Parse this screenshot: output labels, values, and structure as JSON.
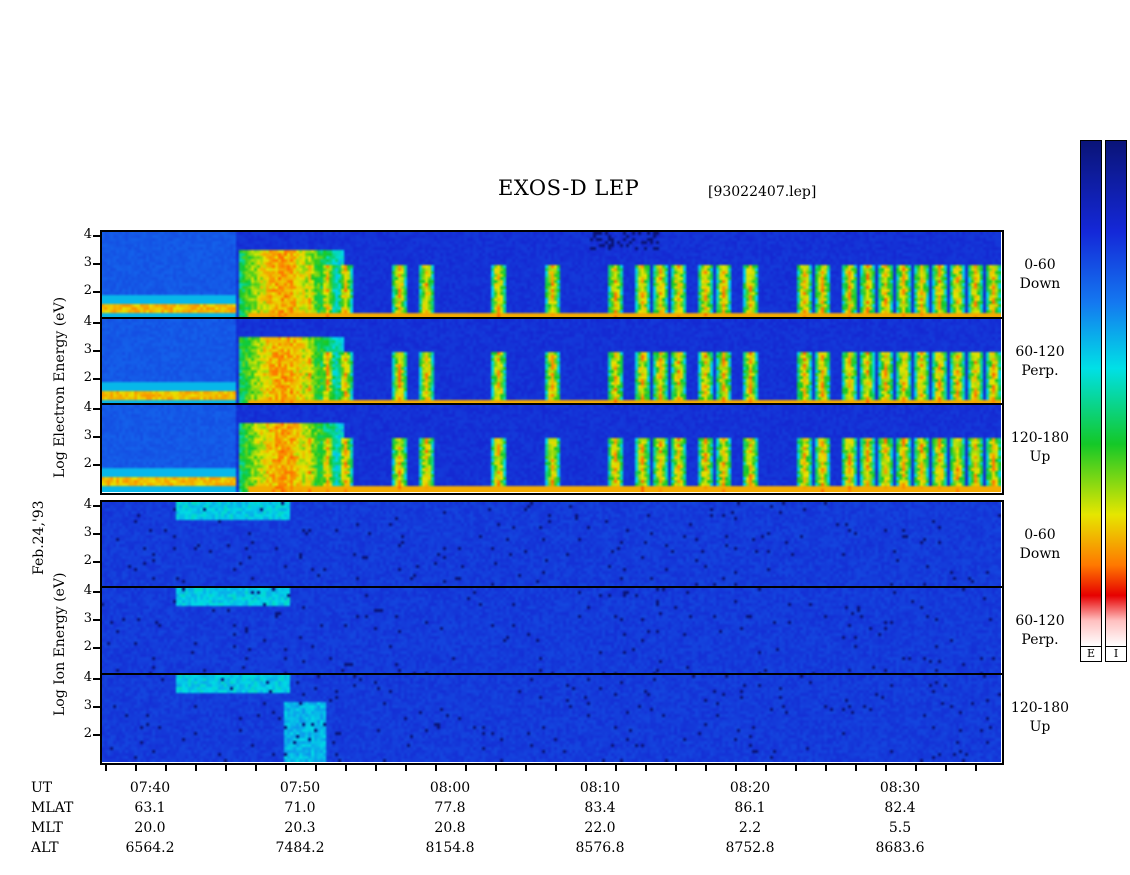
{
  "title": "EXOS-D LEP",
  "file_name": "[93022407.lep]",
  "date_label": "Feb.24,'93",
  "electron_label": "Log  Electron  Energy (eV)",
  "ion_label": "Log  Ion  Energy (eV)",
  "colorbar_labels": {
    "electron": "E",
    "ion": "I"
  },
  "colors": {
    "frame": "#000000",
    "background_spectrogram": "#1428d8"
  },
  "chart_data": {
    "type": "heatmap",
    "title": "EXOS-D LEP",
    "x_axis_label": "UT",
    "x_ticks": [
      "07:40",
      "07:50",
      "08:00",
      "08:10",
      "08:20",
      "08:30"
    ],
    "y_axis_range": [
      1,
      4
    ],
    "y_ticks": [
      "4",
      "3",
      "2"
    ],
    "panels": [
      {
        "species": "Electron",
        "pitch": "0-60",
        "direction": "Down"
      },
      {
        "species": "Electron",
        "pitch": "60-120",
        "direction": "Perp."
      },
      {
        "species": "Electron",
        "pitch": "120-180",
        "direction": "Up"
      },
      {
        "species": "Ion",
        "pitch": "0-60",
        "direction": "Down"
      },
      {
        "species": "Ion",
        "pitch": "60-120",
        "direction": "Perp."
      },
      {
        "species": "Ion",
        "pitch": "120-180",
        "direction": "Up"
      }
    ],
    "ephemeris": [
      {
        "label": "MLAT",
        "values": [
          "63.1",
          "71.0",
          "77.8",
          "83.4",
          "86.1",
          "82.4"
        ]
      },
      {
        "label": "MLT",
        "values": [
          "20.0",
          "20.3",
          "20.8",
          "22.0",
          "2.2",
          "5.5"
        ]
      },
      {
        "label": "ALT",
        "values": [
          "6564.2",
          "7484.2",
          "8154.8",
          "8576.8",
          "8752.8",
          "8683.6"
        ]
      }
    ]
  }
}
